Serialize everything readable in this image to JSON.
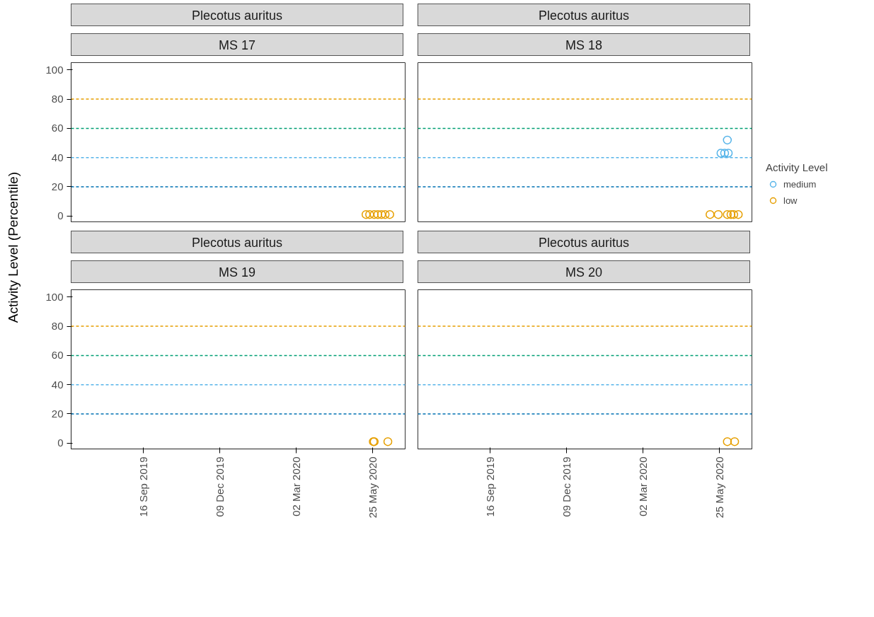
{
  "chart_data": [
    {
      "type": "scatter",
      "title": "Plecotus auritus",
      "subtitle": "MS 17",
      "ylabel": "Activity Level (Percentile)",
      "marker": "circle",
      "grid": false,
      "tick_labels": "y",
      "xlim": [
        "2019-06-29",
        "2020-06-30"
      ],
      "ylim": [
        -4,
        105
      ],
      "yticks": [
        0,
        20,
        40,
        60,
        80,
        100
      ],
      "ref_lines": [
        {
          "axis": "y",
          "value": 20,
          "color": "#0072b2",
          "line_style": "dashed"
        },
        {
          "axis": "y",
          "value": 40,
          "color": "#56b4e9",
          "line_style": "dashed"
        },
        {
          "axis": "y",
          "value": 60,
          "color": "#009e73",
          "line_style": "dashed"
        },
        {
          "axis": "y",
          "value": 80,
          "color": "#e69f00",
          "line_style": "dashed"
        }
      ],
      "series": [
        {
          "color": "#e69f00",
          "x": [
            "2020-05-18",
            "2020-05-22",
            "2020-05-27",
            "2020-05-31",
            "2020-06-04",
            "2020-06-08",
            "2020-06-13"
          ],
          "values": [
            1,
            1,
            1,
            1,
            1,
            1,
            1
          ]
        }
      ]
    },
    {
      "type": "scatter",
      "title": "Plecotus auritus",
      "subtitle": "MS 18",
      "legend": "right",
      "legend_title": "Activity Level",
      "marker": "circle",
      "grid": false,
      "tick_labels": false,
      "xlim": [
        "2019-06-29",
        "2020-06-30"
      ],
      "ylim": [
        -4,
        105
      ],
      "ref_lines": [
        {
          "axis": "y",
          "value": 20,
          "color": "#0072b2",
          "line_style": "dashed"
        },
        {
          "axis": "y",
          "value": 40,
          "color": "#56b4e9",
          "line_style": "dashed"
        },
        {
          "axis": "y",
          "value": 60,
          "color": "#009e73",
          "line_style": "dashed"
        },
        {
          "axis": "y",
          "value": 80,
          "color": "#e69f00",
          "line_style": "dashed"
        }
      ],
      "series": [
        {
          "name": "medium",
          "color": "#56b4e9",
          "x": [
            "2020-06-03",
            "2020-05-27",
            "2020-05-31",
            "2020-06-04"
          ],
          "values": [
            52,
            43,
            43,
            43
          ]
        },
        {
          "name": "low",
          "color": "#e69f00",
          "x": [
            "2020-05-15",
            "2020-05-24",
            "2020-06-03",
            "2020-06-07",
            "2020-06-10",
            "2020-06-15"
          ],
          "values": [
            1,
            1,
            1,
            1,
            1,
            1
          ]
        }
      ]
    },
    {
      "type": "scatter",
      "title": "Plecotus auritus",
      "subtitle": "MS 19",
      "marker": "circle",
      "grid": false,
      "xlim": [
        "2019-06-29",
        "2020-06-30"
      ],
      "xticks": [
        {
          "value": "2019-09-16",
          "label": "16 Sep 2019"
        },
        {
          "value": "2019-12-09",
          "label": "09 Dec 2019"
        },
        {
          "value": "2020-03-02",
          "label": "02 Mar 2020"
        },
        {
          "value": "2020-05-25",
          "label": "25 May 2020"
        }
      ],
      "ylim": [
        -4,
        105
      ],
      "yticks": [
        0,
        20,
        40,
        60,
        80,
        100
      ],
      "ref_lines": [
        {
          "axis": "y",
          "value": 20,
          "color": "#0072b2",
          "line_style": "dashed"
        },
        {
          "axis": "y",
          "value": 40,
          "color": "#56b4e9",
          "line_style": "dashed"
        },
        {
          "axis": "y",
          "value": 60,
          "color": "#009e73",
          "line_style": "dashed"
        },
        {
          "axis": "y",
          "value": 80,
          "color": "#e69f00",
          "line_style": "dashed"
        }
      ],
      "series": [
        {
          "color": "#e69f00",
          "x": [
            "2020-05-26",
            "2020-05-27",
            "2020-06-11"
          ],
          "values": [
            1,
            1,
            1
          ]
        }
      ]
    },
    {
      "type": "scatter",
      "title": "Plecotus auritus",
      "subtitle": "MS 20",
      "marker": "circle",
      "grid": false,
      "tick_labels": "x",
      "xlim": [
        "2019-06-29",
        "2020-06-30"
      ],
      "xticks": [
        {
          "value": "2019-09-16",
          "label": "16 Sep 2019"
        },
        {
          "value": "2019-12-09",
          "label": "09 Dec 2019"
        },
        {
          "value": "2020-03-02",
          "label": "02 Mar 2020"
        },
        {
          "value": "2020-05-25",
          "label": "25 May 2020"
        }
      ],
      "ylim": [
        -4,
        105
      ],
      "ref_lines": [
        {
          "axis": "y",
          "value": 20,
          "color": "#0072b2",
          "line_style": "dashed"
        },
        {
          "axis": "y",
          "value": 40,
          "color": "#56b4e9",
          "line_style": "dashed"
        },
        {
          "axis": "y",
          "value": 60,
          "color": "#009e73",
          "line_style": "dashed"
        },
        {
          "axis": "y",
          "value": 80,
          "color": "#e69f00",
          "line_style": "dashed"
        }
      ],
      "series": [
        {
          "color": "#e69f00",
          "x": [
            "2020-06-03",
            "2020-06-11"
          ],
          "values": [
            1,
            1
          ]
        }
      ]
    }
  ]
}
